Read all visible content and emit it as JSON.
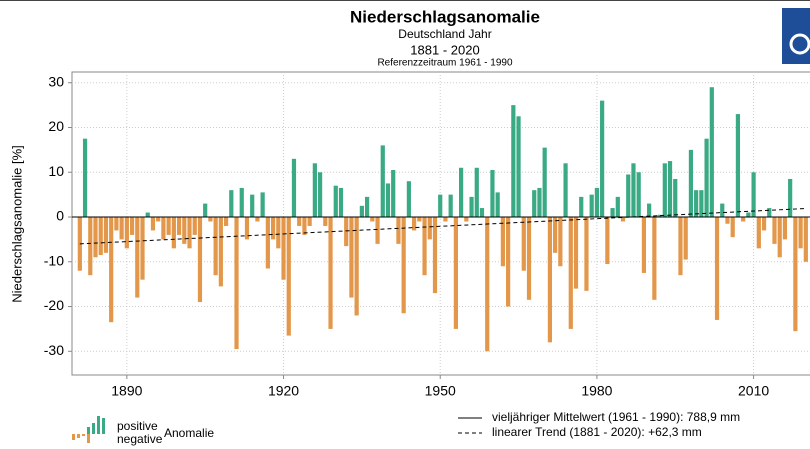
{
  "chart_data": {
    "type": "bar",
    "title": "Niederschlagsanomalie",
    "subtitle": "Deutschland Jahr",
    "period": "1881 - 2020",
    "reference": "Referenzzeitraum 1961 - 1990",
    "y_label": "Niederschlagsanomalie [%]",
    "x": [
      1881,
      1882,
      1883,
      1884,
      1885,
      1886,
      1887,
      1888,
      1889,
      1890,
      1891,
      1892,
      1893,
      1894,
      1895,
      1896,
      1897,
      1898,
      1899,
      1900,
      1901,
      1902,
      1903,
      1904,
      1905,
      1906,
      1907,
      1908,
      1909,
      1910,
      1911,
      1912,
      1913,
      1914,
      1915,
      1916,
      1917,
      1918,
      1919,
      1920,
      1921,
      1922,
      1923,
      1924,
      1925,
      1926,
      1927,
      1928,
      1929,
      1930,
      1931,
      1932,
      1933,
      1934,
      1935,
      1936,
      1937,
      1938,
      1939,
      1940,
      1941,
      1942,
      1943,
      1944,
      1945,
      1946,
      1947,
      1948,
      1949,
      1950,
      1951,
      1952,
      1953,
      1954,
      1955,
      1956,
      1957,
      1958,
      1959,
      1960,
      1961,
      1962,
      1963,
      1964,
      1965,
      1966,
      1967,
      1968,
      1969,
      1970,
      1971,
      1972,
      1973,
      1974,
      1975,
      1976,
      1977,
      1978,
      1979,
      1980,
      1981,
      1982,
      1983,
      1984,
      1985,
      1986,
      1987,
      1988,
      1989,
      1990,
      1991,
      1992,
      1993,
      1994,
      1995,
      1996,
      1997,
      1998,
      1999,
      2000,
      2001,
      2002,
      2003,
      2004,
      2005,
      2006,
      2007,
      2008,
      2009,
      2010,
      2011,
      2012,
      2013,
      2014,
      2015,
      2016,
      2017,
      2018,
      2019,
      2020
    ],
    "values": [
      -12,
      17.5,
      -13,
      -9,
      -8.5,
      -8,
      -23.5,
      -3,
      -5,
      -7,
      -4,
      -18,
      -14,
      1,
      -3,
      -1,
      -5,
      -4,
      -7,
      -4,
      -6,
      -7,
      -4,
      -19,
      3,
      -1,
      -13,
      -15.5,
      -2,
      6,
      -29.5,
      6.5,
      -5,
      5,
      -1,
      5.5,
      -11.5,
      -5,
      -7,
      -14,
      -26.5,
      13,
      -2,
      -4,
      -2,
      12,
      10,
      -2,
      -25,
      7,
      6.5,
      -6.5,
      -18,
      -22,
      2.5,
      4.5,
      -1,
      -6,
      16,
      7.5,
      10.5,
      -6,
      -21.5,
      8,
      -3,
      -1,
      -13,
      -5,
      -17,
      5,
      -1,
      5,
      -25,
      11,
      -1,
      4.5,
      11,
      2,
      -30,
      10.5,
      5.5,
      -11,
      -20,
      25,
      22.5,
      -12,
      -18.5,
      6,
      6.5,
      15.5,
      -28,
      -8,
      -11,
      12,
      -25,
      -16,
      4.5,
      -16.5,
      5,
      6.5,
      26,
      -10.5,
      2,
      4.5,
      -1,
      9.5,
      12,
      10,
      -12.5,
      3,
      -18.5,
      0.5,
      12,
      12.5,
      8.5,
      -13,
      -9.5,
      15,
      6,
      6,
      17.5,
      29,
      -23,
      3,
      -1.5,
      -4.5,
      23,
      -1,
      1,
      10,
      -7,
      -3,
      2,
      -6,
      -9,
      -5,
      8.5,
      -25.5,
      -7,
      -10
    ],
    "positive_color": "#3aaa84",
    "negative_color": "#e3974a",
    "trend": {
      "start": -6,
      "end": 1.9
    },
    "xlim": [
      1879.5,
      2020.8
    ],
    "xticks": [
      1890,
      1920,
      1950,
      1980,
      2010
    ],
    "ylim": [
      -35.3,
      32.4
    ],
    "yticks": [
      -30,
      -20,
      -10,
      0,
      10,
      20,
      30
    ],
    "grid": true,
    "legend": {
      "positive": "positive",
      "negative": "negative",
      "anomaly": "Anomalie",
      "mean": "vieljähriger Mittelwert (1961 - 1990): 788,9 mm",
      "trend": "linearer Trend (1881 - 2020): +62,3 mm"
    }
  }
}
